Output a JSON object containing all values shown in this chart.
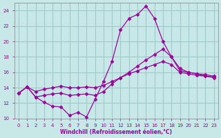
{
  "xlabel": "Windchill (Refroidissement éolien,°C)",
  "bg_color": "#c8e8e8",
  "grid_color": "#a0c8c8",
  "line_color": "#990099",
  "marker": "D",
  "markersize": 2.5,
  "x_min": -0.5,
  "x_max": 23.5,
  "y_min": 10,
  "y_max": 25,
  "yticks": [
    10,
    12,
    14,
    16,
    18,
    20,
    22,
    24
  ],
  "xticks": [
    0,
    1,
    2,
    3,
    4,
    5,
    6,
    7,
    8,
    9,
    10,
    11,
    12,
    13,
    14,
    15,
    16,
    17,
    18,
    19,
    20,
    21,
    22,
    23
  ],
  "line1_x": [
    0,
    1,
    2,
    3,
    4,
    5,
    6,
    7,
    8,
    9,
    10,
    11,
    12,
    13,
    14,
    15,
    16,
    17,
    18,
    19,
    20,
    21,
    22,
    23
  ],
  "line1_y": [
    13.3,
    14.1,
    12.8,
    12.1,
    11.6,
    11.5,
    10.4,
    10.8,
    10.2,
    12.5,
    14.8,
    17.4,
    21.5,
    23.0,
    23.5,
    24.6,
    23.0,
    20.0,
    18.0,
    16.2,
    16.0,
    15.8,
    15.7,
    15.5
  ],
  "line2_x": [
    0,
    1,
    2,
    3,
    4,
    5,
    6,
    7,
    8,
    9,
    10,
    11,
    12,
    13,
    14,
    15,
    16,
    17,
    18,
    19,
    20,
    21,
    22,
    23
  ],
  "line2_y": [
    13.3,
    14.1,
    12.8,
    13.0,
    13.2,
    13.3,
    13.0,
    13.1,
    13.2,
    13.0,
    13.5,
    14.5,
    15.3,
    16.0,
    16.8,
    17.6,
    18.3,
    19.0,
    18.0,
    16.5,
    16.0,
    15.8,
    15.5,
    15.3
  ],
  "line3_x": [
    0,
    1,
    2,
    3,
    4,
    5,
    6,
    7,
    8,
    9,
    10,
    11,
    12,
    13,
    14,
    15,
    16,
    17,
    18,
    19,
    20,
    21,
    22,
    23
  ],
  "line3_y": [
    13.3,
    14.1,
    13.5,
    13.8,
    14.0,
    14.2,
    14.0,
    14.0,
    14.1,
    14.0,
    14.3,
    14.8,
    15.3,
    15.8,
    16.2,
    16.6,
    17.0,
    17.4,
    17.0,
    16.0,
    15.8,
    15.6,
    15.5,
    15.4
  ]
}
